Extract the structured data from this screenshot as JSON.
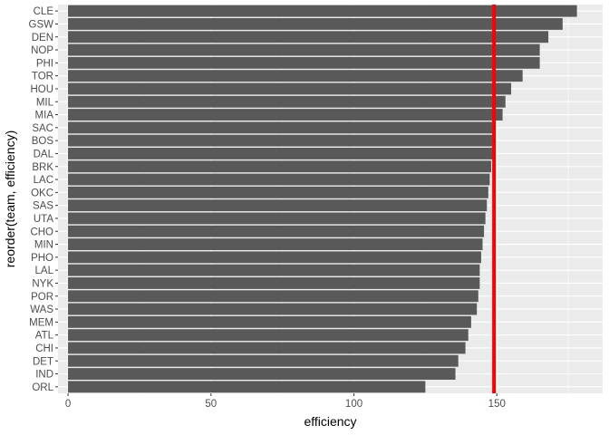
{
  "chart_data": {
    "type": "bar",
    "orientation": "horizontal",
    "title": "",
    "xlabel": "efficiency",
    "ylabel": "reorder(team, efficiency)",
    "xlim": [
      -3.5,
      187
    ],
    "x_ticks": [
      0,
      50,
      100,
      150
    ],
    "grid": true,
    "background": "#EBEBEB",
    "bar_color": "#595959",
    "reference_line": {
      "value": 149,
      "color": "#FF0000"
    },
    "categories": [
      "CLE",
      "GSW",
      "DEN",
      "NOP",
      "PHI",
      "TOR",
      "HOU",
      "MIL",
      "MIA",
      "SAC",
      "BOS",
      "DAL",
      "BRK",
      "LAC",
      "OKC",
      "SAS",
      "UTA",
      "CHO",
      "MIN",
      "PHO",
      "LAL",
      "NYK",
      "POR",
      "WAS",
      "MEM",
      "ATL",
      "CHI",
      "DET",
      "IND",
      "ORL"
    ],
    "values": [
      178,
      173,
      168,
      165,
      165,
      159,
      155,
      153,
      152,
      149,
      149,
      149,
      148,
      147.5,
      147,
      146.5,
      146,
      145.5,
      145,
      144.5,
      144,
      144,
      143.5,
      143,
      141,
      140,
      139,
      136.5,
      135.5,
      125
    ]
  }
}
